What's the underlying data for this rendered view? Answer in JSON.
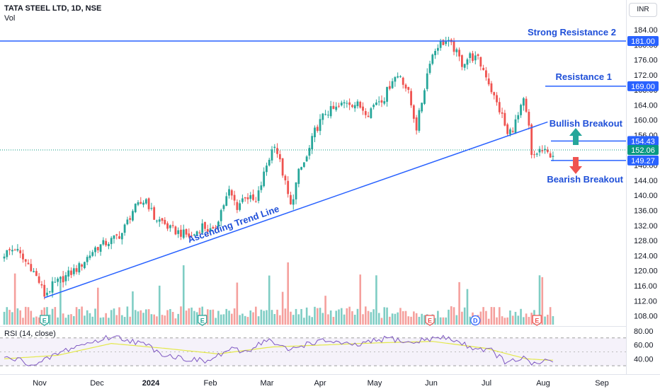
{
  "header": {
    "symbol": "TATA STEEL LTD, 1D, NSE",
    "volume_label": "Vol",
    "currency": "INR",
    "rsi_label": "RSI (14, close)"
  },
  "colors": {
    "up": "#26a69a",
    "down": "#ef5350",
    "vol_up": "#7fcdc4",
    "vol_down": "#f5a09d",
    "line": "#2962ff",
    "annotation": "#1f4fd8",
    "rsi": "#7e57c2",
    "rsi_ma": "#e3e84a",
    "last_price": "#089981"
  },
  "chart_data": {
    "type": "candlestick",
    "y_axis": {
      "ticks": [
        "184.00",
        "180.00",
        "176.00",
        "172.00",
        "168.00",
        "164.00",
        "160.00",
        "156.00",
        "152.00",
        "148.00",
        "144.00",
        "140.00",
        "136.00",
        "132.00",
        "128.00",
        "124.00",
        "120.00",
        "116.00",
        "112.00",
        "108.00"
      ],
      "range": [
        106.6,
        185.5
      ]
    },
    "x_axis": {
      "ticks": [
        "Nov",
        "Dec",
        "2024",
        "Feb",
        "Mar",
        "Apr",
        "May",
        "Jun",
        "Jul",
        "Aug",
        "Sep"
      ],
      "bold_tick": "2024"
    },
    "price_path": [
      [
        0,
        124.5
      ],
      [
        4,
        126
      ],
      [
        7,
        123
      ],
      [
        10,
        121
      ],
      [
        13,
        117
      ],
      [
        15,
        113.5
      ],
      [
        18,
        116
      ],
      [
        22,
        118
      ],
      [
        28,
        121
      ],
      [
        34,
        126
      ],
      [
        40,
        128
      ],
      [
        44,
        130
      ],
      [
        48,
        136
      ],
      [
        53,
        139
      ],
      [
        56,
        134
      ],
      [
        59,
        133
      ],
      [
        62,
        131
      ],
      [
        66,
        130
      ],
      [
        70,
        129
      ],
      [
        74,
        132
      ],
      [
        78,
        130
      ],
      [
        81,
        136
      ],
      [
        84,
        141
      ],
      [
        87,
        137
      ],
      [
        90,
        140
      ],
      [
        94,
        138
      ],
      [
        98,
        148
      ],
      [
        101,
        154
      ],
      [
        104,
        146
      ],
      [
        107,
        137
      ],
      [
        110,
        146
      ],
      [
        113,
        150
      ],
      [
        116,
        157
      ],
      [
        120,
        162
      ],
      [
        124,
        163
      ],
      [
        128,
        165
      ],
      [
        132,
        164
      ],
      [
        136,
        162
      ],
      [
        139,
        165
      ],
      [
        142,
        166
      ],
      [
        145,
        171
      ],
      [
        148,
        172
      ],
      [
        151,
        167
      ],
      [
        154,
        158
      ],
      [
        156,
        165
      ],
      [
        159,
        176
      ],
      [
        162,
        180
      ],
      [
        165,
        181
      ],
      [
        168,
        179
      ],
      [
        171,
        175
      ],
      [
        174,
        177
      ],
      [
        177,
        176
      ],
      [
        180,
        172
      ],
      [
        183,
        166
      ],
      [
        186,
        161
      ],
      [
        188,
        156
      ],
      [
        190,
        158
      ],
      [
        192,
        161
      ],
      [
        194,
        165
      ],
      [
        196,
        158
      ],
      [
        197,
        150
      ],
      [
        200,
        152
      ],
      [
        203,
        151
      ]
    ],
    "volume_shape": "per-candle volume bars in bottom band, heights unlabeled",
    "earnings_markers": [
      {
        "label": "E",
        "x": 15
      },
      {
        "label": "E",
        "x": 74
      },
      {
        "label": "E",
        "x": 159
      },
      {
        "label": "D",
        "x": 176
      },
      {
        "label": "E",
        "x": 199
      }
    ],
    "rsi": {
      "ticks": [
        "80.00",
        "60.00",
        "40.00"
      ],
      "range": [
        25,
        82
      ],
      "path": [
        [
          0,
          41
        ],
        [
          6,
          38
        ],
        [
          12,
          30
        ],
        [
          18,
          44
        ],
        [
          26,
          57
        ],
        [
          34,
          65
        ],
        [
          40,
          72
        ],
        [
          46,
          68
        ],
        [
          54,
          58
        ],
        [
          60,
          46
        ],
        [
          68,
          40
        ],
        [
          76,
          36
        ],
        [
          84,
          53
        ],
        [
          90,
          50
        ],
        [
          98,
          68
        ],
        [
          106,
          52
        ],
        [
          114,
          63
        ],
        [
          122,
          66
        ],
        [
          130,
          58
        ],
        [
          138,
          65
        ],
        [
          144,
          70
        ],
        [
          152,
          62
        ],
        [
          158,
          69
        ],
        [
          166,
          70
        ],
        [
          174,
          57
        ],
        [
          182,
          52
        ],
        [
          188,
          33
        ],
        [
          194,
          42
        ],
        [
          197,
          30
        ],
        [
          203,
          38
        ]
      ],
      "ma_path": [
        [
          0,
          40
        ],
        [
          20,
          45
        ],
        [
          40,
          62
        ],
        [
          60,
          55
        ],
        [
          80,
          47
        ],
        [
          100,
          57
        ],
        [
          120,
          60
        ],
        [
          140,
          63
        ],
        [
          160,
          65
        ],
        [
          180,
          55
        ],
        [
          195,
          40
        ],
        [
          203,
          38
        ]
      ]
    },
    "annotations": {
      "strong_resistance_2": {
        "label": "Strong Resistance 2",
        "price": 181.0,
        "price_label": "181.00"
      },
      "resistance_1": {
        "label": "Resistance 1",
        "price": 169.0,
        "price_label": "169.00"
      },
      "bullish": {
        "label": "Bullish Breakout",
        "price": 154.43,
        "price_label": "154.43"
      },
      "bearish": {
        "label": "Bearish Breakout",
        "price": 149.27,
        "price_label": "149.27"
      },
      "last_price": {
        "price": 152.06,
        "price_label": "152.06"
      },
      "trend_line": {
        "label": "Ascending Trend Line",
        "from": [
          15,
          112.8
        ],
        "to": [
          203,
          159.5
        ]
      }
    }
  }
}
